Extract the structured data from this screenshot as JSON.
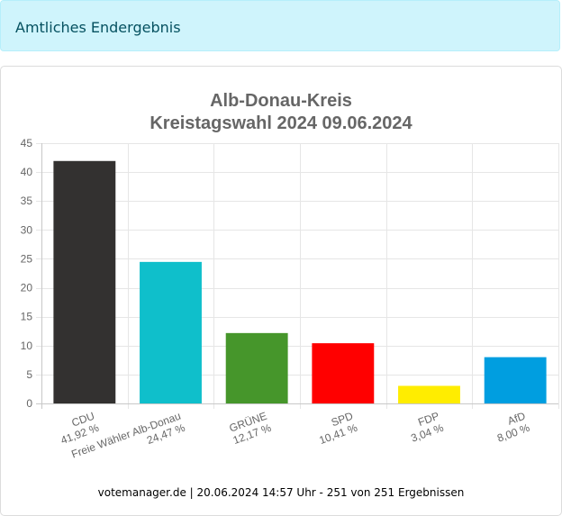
{
  "alert": {
    "text": "Amtliches Endergebnis"
  },
  "chart_data": {
    "type": "bar",
    "title": [
      "Alb-Donau-Kreis",
      "Kreistagswahl 2024 09.06.2024"
    ],
    "categories": [
      "CDU",
      "Freie Wähler Alb-Donau",
      "GRÜNE",
      "SPD",
      "FDP",
      "AfD"
    ],
    "value_labels": [
      "41,92 %",
      "24,47 %",
      "12,17 %",
      "10,41 %",
      "3,04 %",
      "8,00 %"
    ],
    "values": [
      41.92,
      24.47,
      12.17,
      10.41,
      3.04,
      8.0
    ],
    "colors": [
      "#333130",
      "#0fbfcb",
      "#46962b",
      "#ff0000",
      "#ffed00",
      "#009ee0"
    ],
    "ylim": [
      0,
      45
    ],
    "yticks": [
      0,
      5,
      10,
      15,
      20,
      25,
      30,
      35,
      40,
      45
    ],
    "grid": true,
    "xlabel": "",
    "ylabel": ""
  },
  "footer": {
    "text": "votemanager.de | 20.06.2024 14:57 Uhr - 251 von 251 Ergebnissen"
  }
}
